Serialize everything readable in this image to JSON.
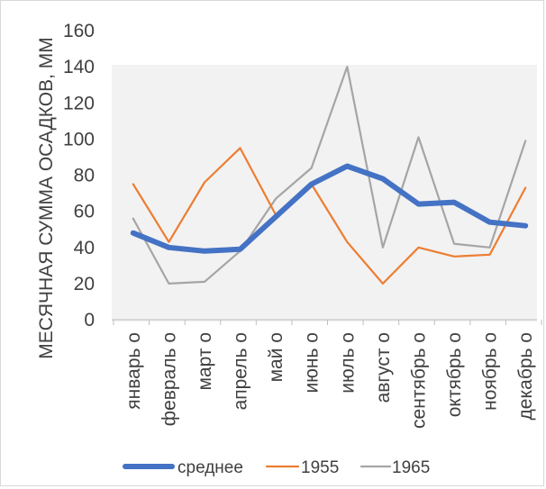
{
  "chart_data": {
    "type": "line",
    "ylabel": "МЕСЯЧНАЯ СУММА ОСАДКОВ, ММ",
    "xlabel": "",
    "ylim": [
      0,
      160
    ],
    "yticks": [
      0,
      20,
      40,
      60,
      80,
      100,
      120,
      140,
      160
    ],
    "grid": false,
    "legend_position": "bottom",
    "categories": [
      "январь о",
      "февраль о",
      "март о",
      "апрель о",
      "май о",
      "июнь о",
      "июль о",
      "август о",
      "сентябрь о",
      "октябрь о",
      "ноябрь о",
      "декабрь о"
    ],
    "series": [
      {
        "name": "среднее",
        "color": "#4472c4",
        "values": [
          48,
          40,
          38,
          39,
          57,
          75,
          85,
          78,
          64,
          65,
          54,
          52
        ]
      },
      {
        "name": "1955",
        "color": "#ed7d31",
        "values": [
          75,
          43,
          76,
          95,
          58,
          75,
          43,
          20,
          40,
          35,
          36,
          73
        ]
      },
      {
        "name": "1965",
        "color": "#a5a5a5",
        "values": [
          56,
          20,
          21,
          38,
          67,
          84,
          140,
          40,
          101,
          42,
          40,
          99
        ]
      }
    ]
  }
}
